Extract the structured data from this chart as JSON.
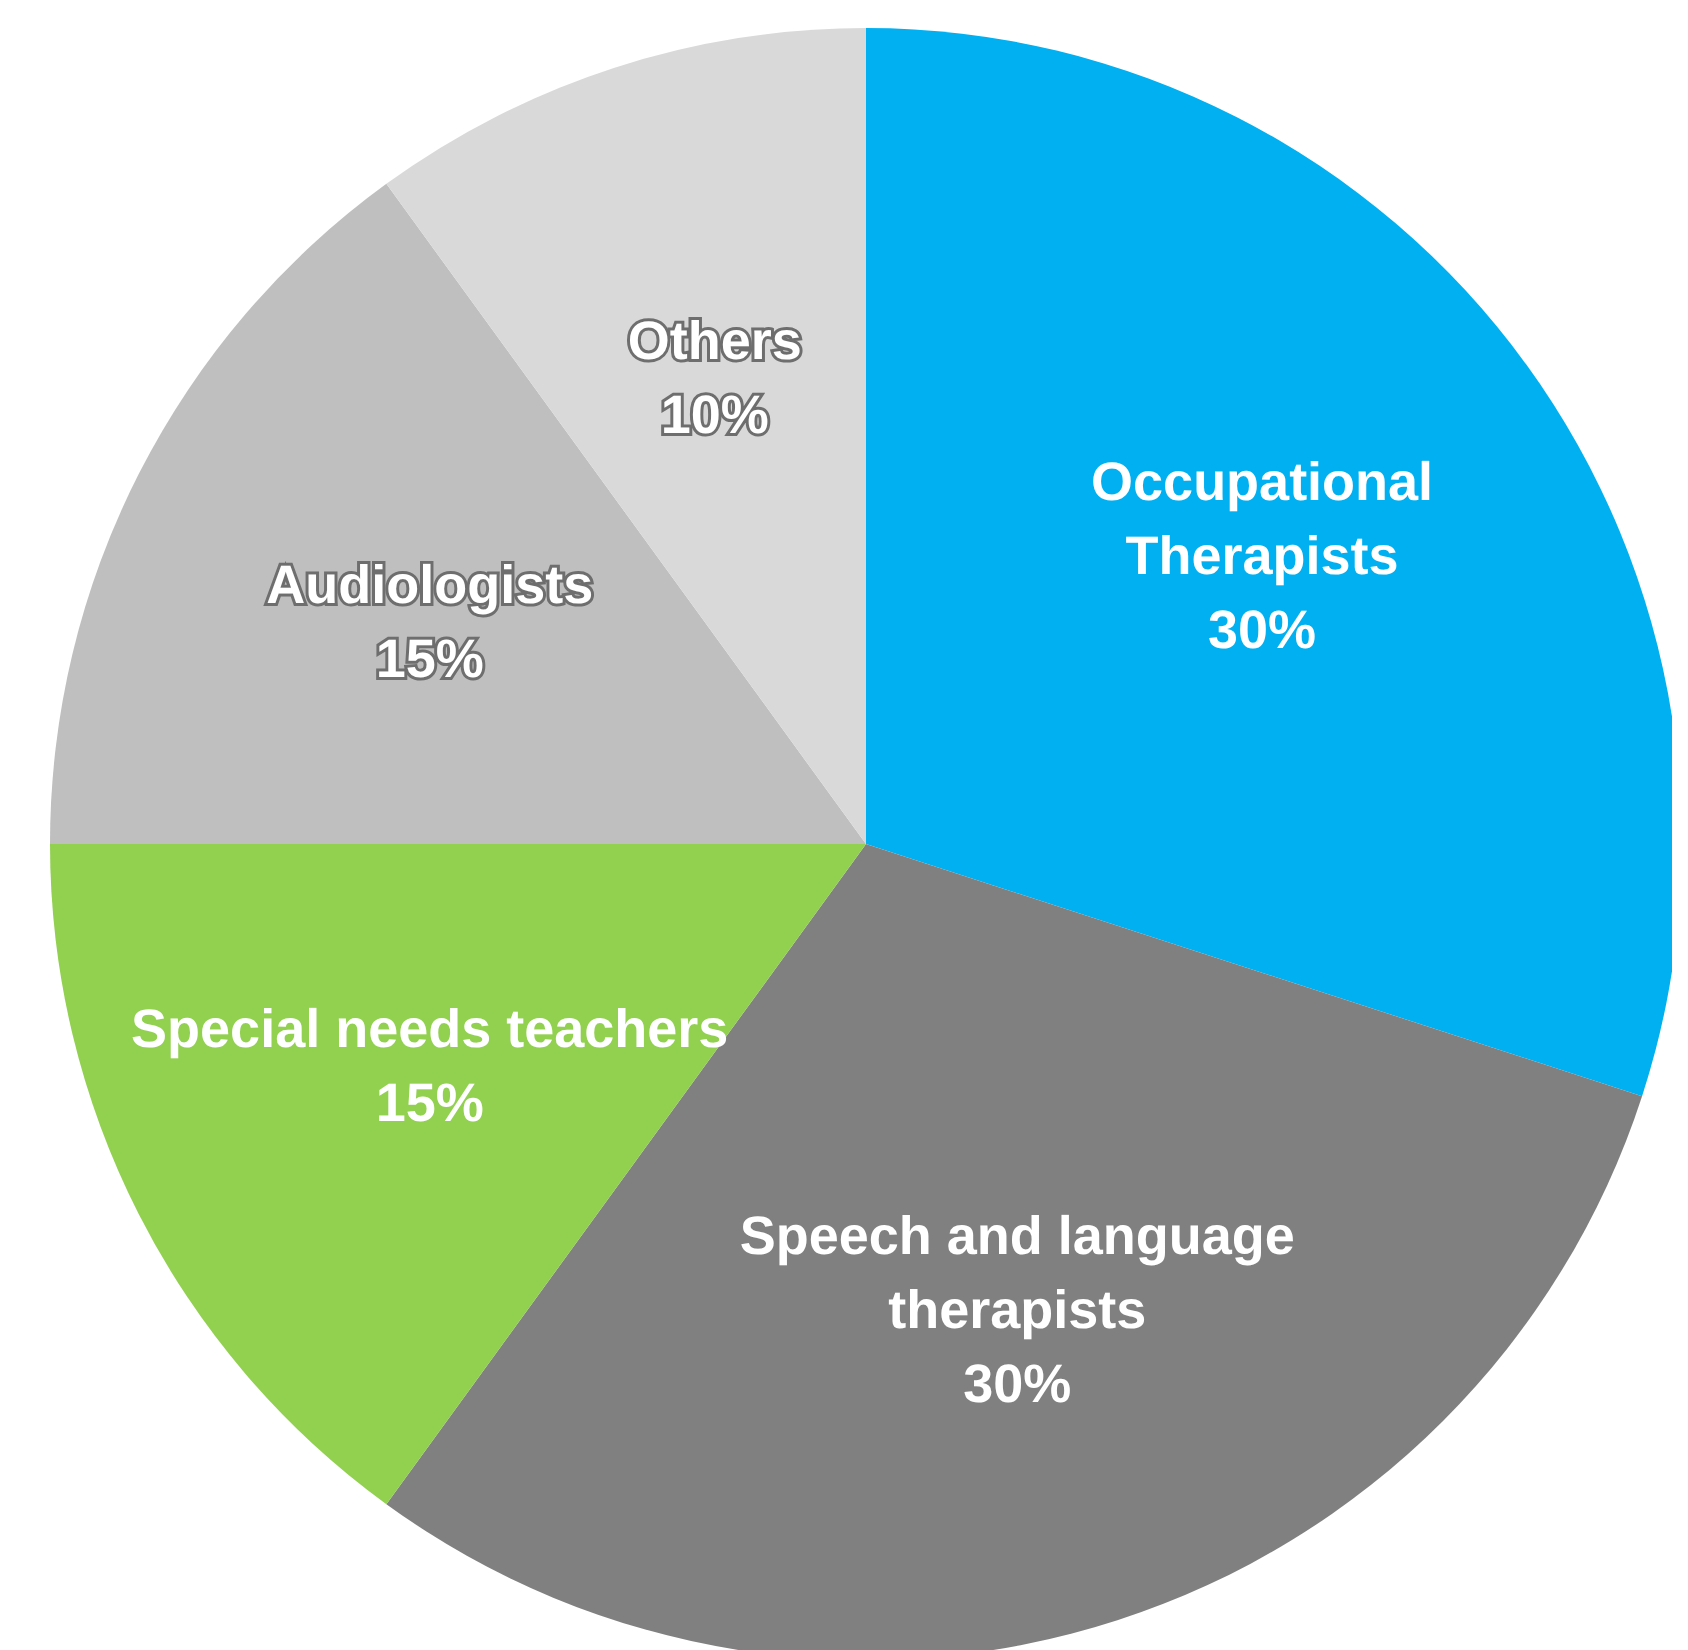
{
  "chart_data": {
    "type": "pie",
    "categories": [
      "Occupational Therapists",
      "Speech and language therapists",
      "Special needs teachers",
      "Audiologists",
      "Others"
    ],
    "values": [
      30,
      30,
      15,
      15,
      10
    ],
    "colors": [
      "#00b0f0",
      "#808080",
      "#92d050",
      "#bfbfbf",
      "#d9d9d9"
    ],
    "value_labels": [
      "30%",
      "30%",
      "15%",
      "15%",
      "10%"
    ]
  }
}
